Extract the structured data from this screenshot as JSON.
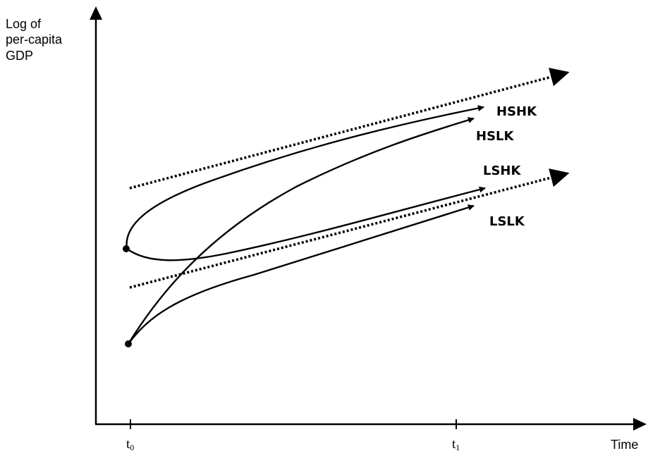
{
  "y_axis_label": [
    "Log of",
    "per-capita",
    "GDP"
  ],
  "x_axis_label": "Time",
  "ticks": [
    {
      "base": "t",
      "sub": "0"
    },
    {
      "base": "t",
      "sub": "1"
    }
  ],
  "curve_labels": {
    "hshk": "HSHK",
    "hslk": "HSLK",
    "lshk": "LSHK",
    "lslk": "LSLK"
  }
}
